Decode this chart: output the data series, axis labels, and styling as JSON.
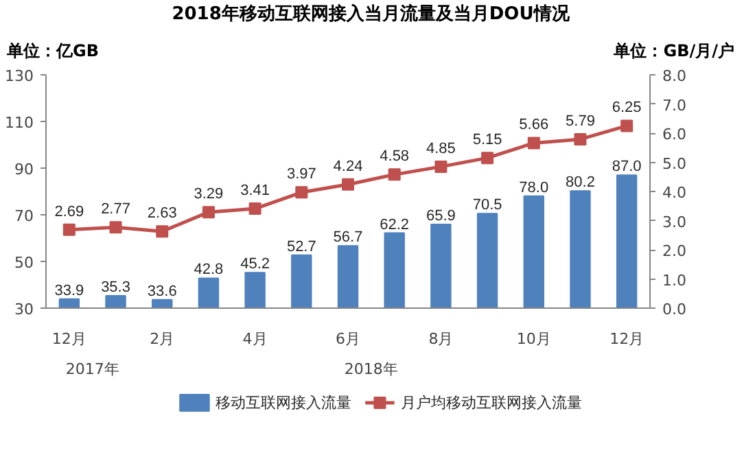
{
  "chart_data": {
    "type": "bar",
    "title": "2018年移动互联网接入当月流量及当月DOU情况",
    "ylabel": "单位：亿GB",
    "y2label": "单位：GB/月/户",
    "categories": [
      "12月",
      null,
      "2月",
      null,
      "4月",
      null,
      "6月",
      null,
      "8月",
      null,
      "10月",
      null,
      "12月"
    ],
    "annotations": [
      "2017年",
      "2018年"
    ],
    "series": [
      {
        "name": "移动互联网接入流量",
        "color": "#4f81bd",
        "values": [
          33.9,
          35.3,
          33.6,
          42.8,
          45.2,
          52.7,
          56.7,
          62.2,
          65.9,
          70.5,
          78.0,
          80.2,
          87.0
        ],
        "value_labels": [
          "33.9",
          "35.3",
          "33.6",
          "42.8",
          "45.2",
          "52.7",
          "56.7",
          "62.2",
          "65.9",
          "70.5",
          "78.0",
          "80.2",
          "87.0"
        ]
      },
      {
        "name": "月户均移动互联网接入流量",
        "type": "line",
        "axis": "y2",
        "color": "#c0504d",
        "marker": "square",
        "values": [
          2.69,
          2.77,
          2.63,
          3.29,
          3.41,
          3.97,
          4.24,
          4.58,
          4.85,
          5.15,
          5.66,
          5.79,
          6.25
        ],
        "value_labels": [
          "2.69",
          "2.77",
          "2.63",
          "3.29",
          "3.41",
          "3.97",
          "4.24",
          "4.58",
          "4.85",
          "5.15",
          "5.66",
          "5.79",
          "6.25"
        ]
      }
    ],
    "ylim": [
      30,
      130
    ],
    "yticks": [
      30,
      50,
      70,
      90,
      110,
      130
    ],
    "y2lim": [
      0,
      8
    ],
    "y2ticks": [
      {
        "value": 0,
        "label": "0.0"
      },
      {
        "value": 1,
        "label": "1.0"
      },
      {
        "value": 2,
        "label": "2.0"
      },
      {
        "value": 3,
        "label": "3.0"
      },
      {
        "value": 4,
        "label": "4.0"
      },
      {
        "value": 5,
        "label": "5.0"
      },
      {
        "value": 6,
        "label": "6.0"
      },
      {
        "value": 7,
        "label": "7.0"
      },
      {
        "value": 8,
        "label": "8.0"
      }
    ],
    "grid": false,
    "legend": "bottom"
  }
}
